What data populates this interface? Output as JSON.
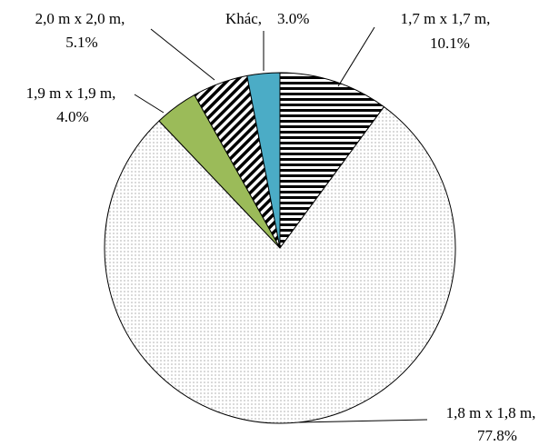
{
  "chart_data": {
    "type": "pie",
    "categories": [
      "1,7 m x 1,7 m,",
      "1,8 m x 1,8 m,",
      "1,9 m x 1,9 m,",
      "2,0 m x 2,0 m,",
      "Khác,"
    ],
    "values": [
      10.1,
      77.8,
      4.0,
      5.1,
      3.0
    ],
    "value_labels": [
      "10.1%",
      "77.8%",
      "4.0%",
      "5.1%",
      "3.0%"
    ],
    "colors": [
      "#000000",
      "#7f7f7f",
      "#9bbb59",
      "#000000",
      "#4bacc6"
    ],
    "patterns": [
      "horizontal",
      "dots",
      "solid",
      "diagonal",
      "solid"
    ]
  }
}
